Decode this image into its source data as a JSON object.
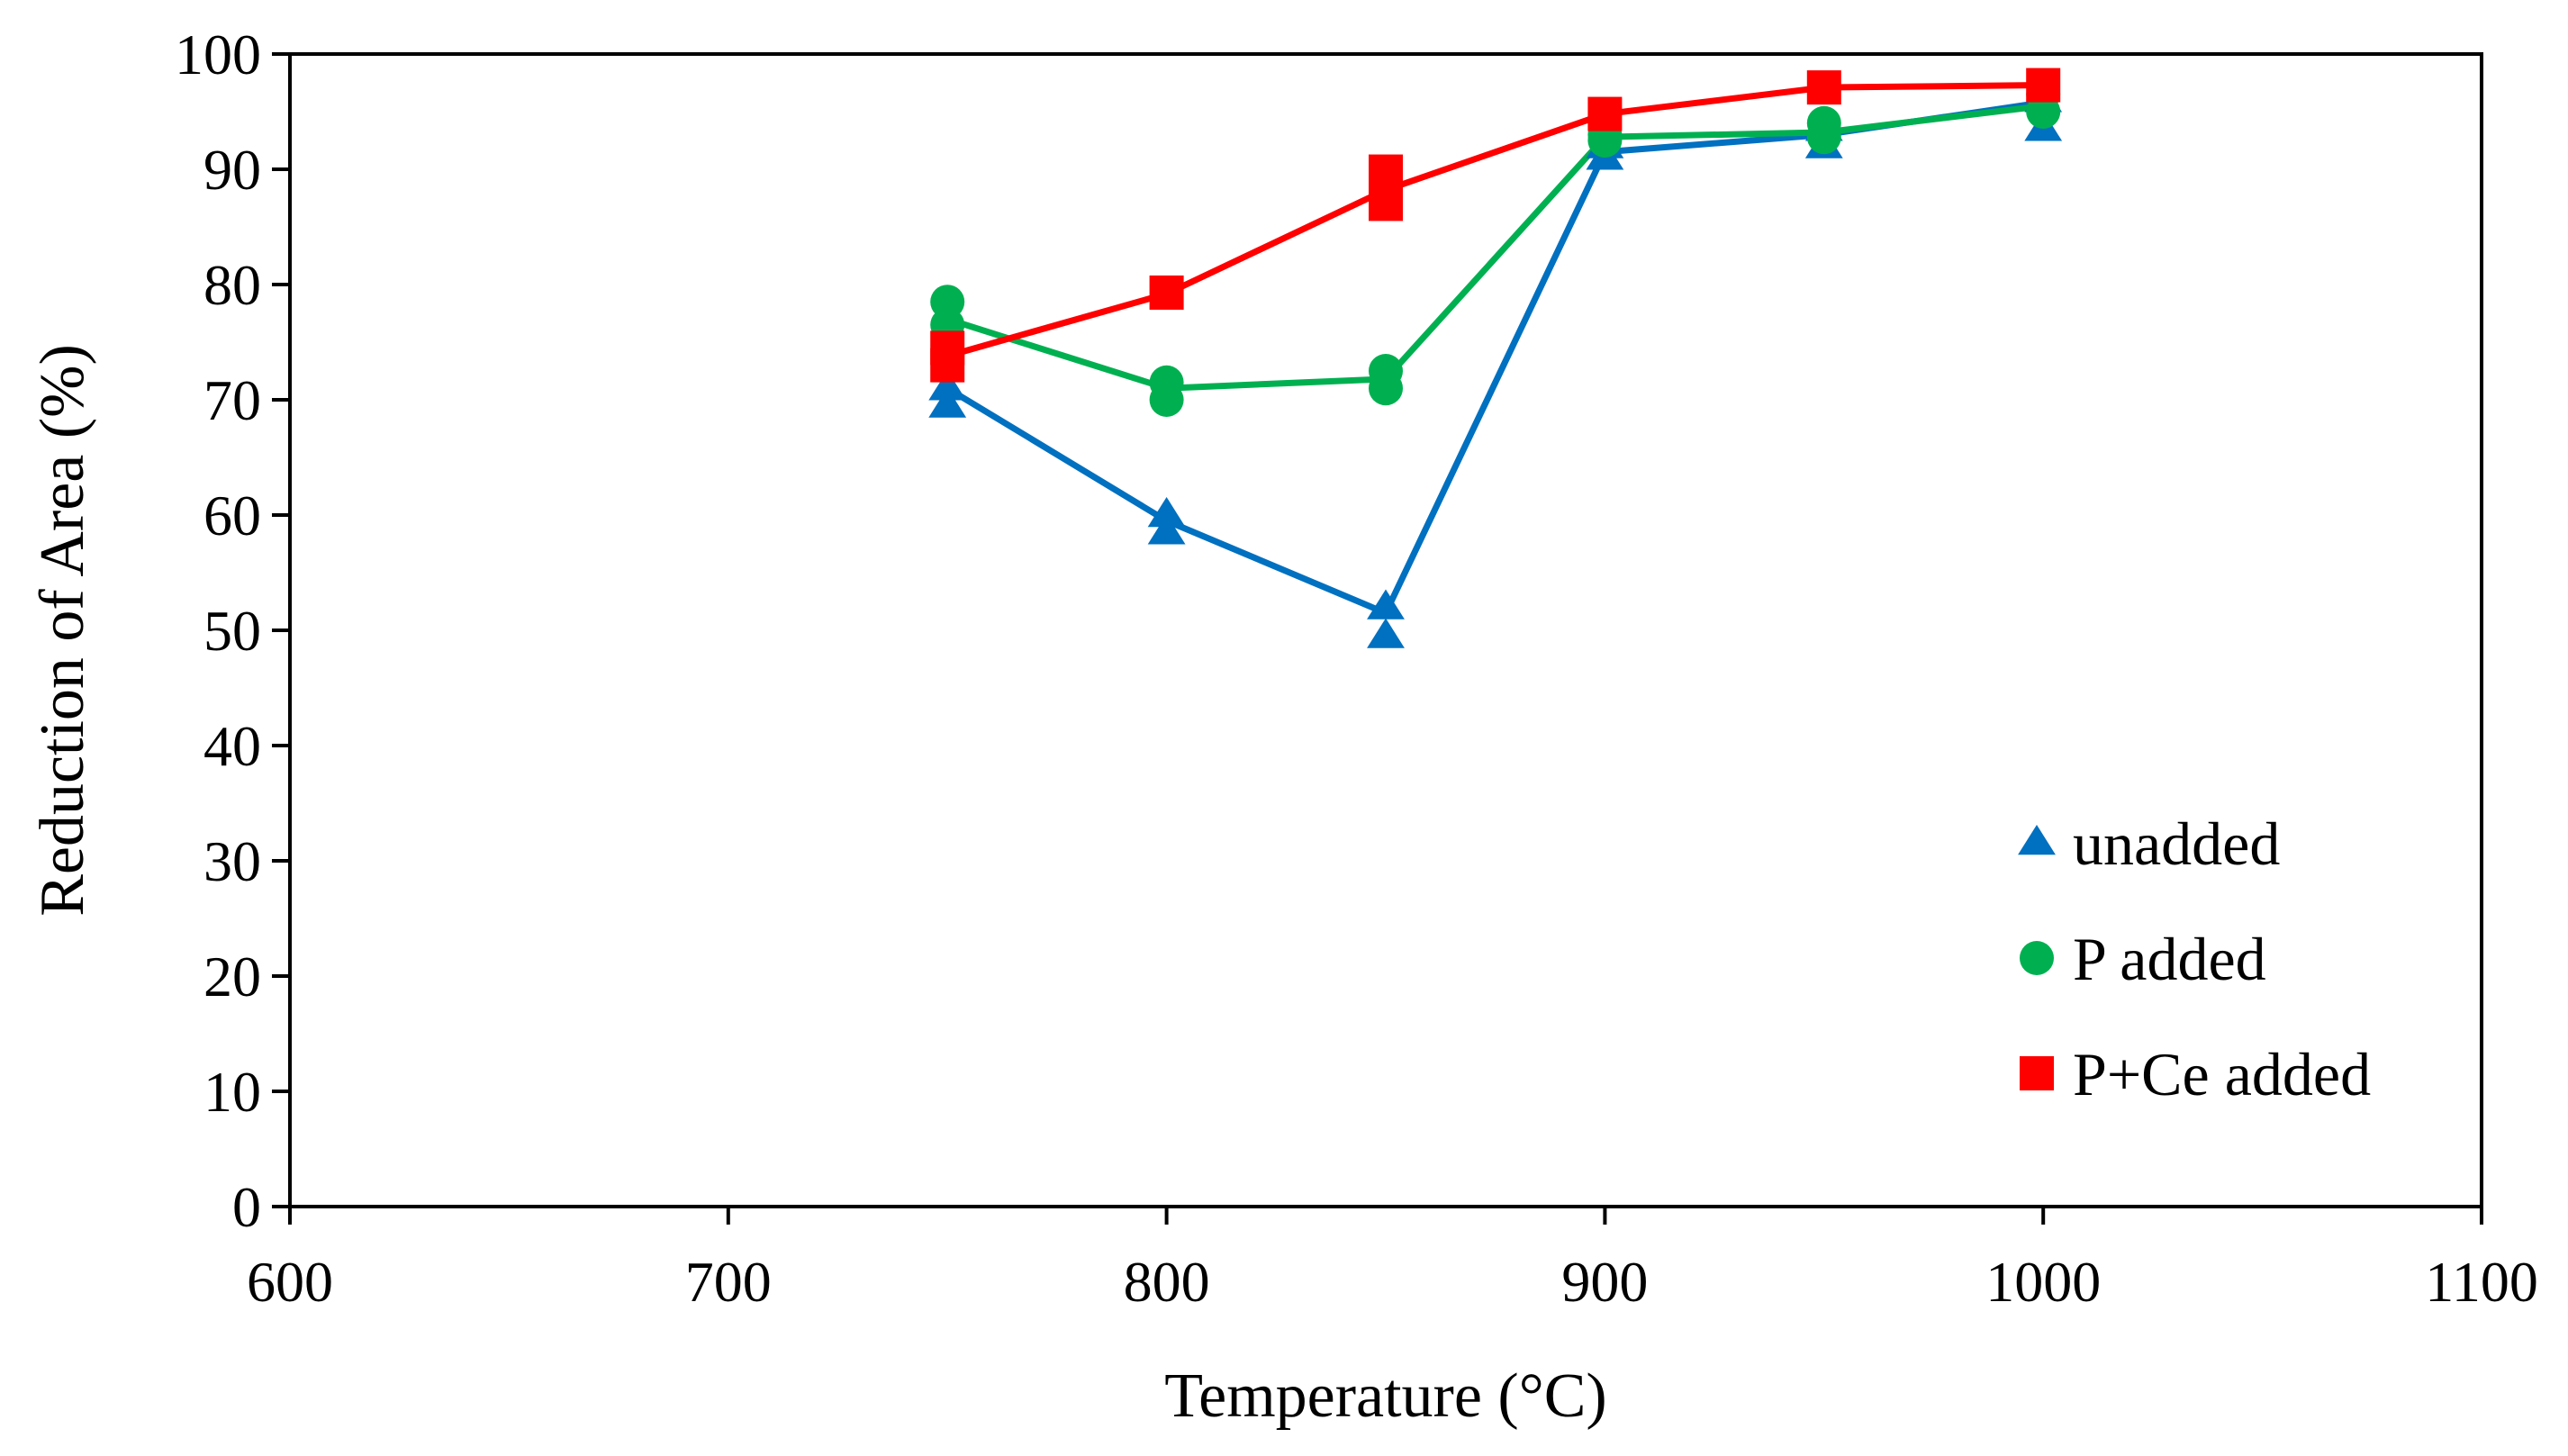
{
  "chart_data": {
    "type": "line",
    "title": "",
    "xlabel": "Temperature (°C)",
    "ylabel": "Reduction of Area (%)",
    "xlim": [
      600,
      1100
    ],
    "ylim": [
      0,
      100
    ],
    "xticks": [
      600,
      700,
      800,
      900,
      1000,
      1100
    ],
    "yticks": [
      0,
      10,
      20,
      30,
      40,
      50,
      60,
      70,
      80,
      90,
      100
    ],
    "grid": false,
    "legend_position": "bottom-right",
    "series": [
      {
        "name": "unadded",
        "color": "#0070C0",
        "marker": "triangle",
        "line": {
          "x": [
            750,
            800,
            850,
            900,
            950,
            1000
          ],
          "y": [
            71,
            59.5,
            51.5,
            91.5,
            93,
            95.8
          ]
        },
        "points": [
          {
            "x": 750,
            "y": 71
          },
          {
            "x": 750,
            "y": 69.5
          },
          {
            "x": 800,
            "y": 60
          },
          {
            "x": 800,
            "y": 58.5
          },
          {
            "x": 850,
            "y": 52
          },
          {
            "x": 850,
            "y": 49.5
          },
          {
            "x": 900,
            "y": 92
          },
          {
            "x": 900,
            "y": 91
          },
          {
            "x": 950,
            "y": 93.5
          },
          {
            "x": 950,
            "y": 92
          },
          {
            "x": 1000,
            "y": 96
          },
          {
            "x": 1000,
            "y": 93.5
          }
        ]
      },
      {
        "name": "P added",
        "color": "#00B050",
        "marker": "circle",
        "line": {
          "x": [
            750,
            800,
            850,
            900,
            950,
            1000
          ],
          "y": [
            77,
            71,
            71.8,
            92.8,
            93.2,
            95.5
          ]
        },
        "points": [
          {
            "x": 750,
            "y": 78.5
          },
          {
            "x": 750,
            "y": 76.5
          },
          {
            "x": 800,
            "y": 71.5
          },
          {
            "x": 800,
            "y": 70
          },
          {
            "x": 850,
            "y": 72.5
          },
          {
            "x": 850,
            "y": 71
          },
          {
            "x": 900,
            "y": 93
          },
          {
            "x": 900,
            "y": 92.5
          },
          {
            "x": 950,
            "y": 94
          },
          {
            "x": 950,
            "y": 92.8
          },
          {
            "x": 1000,
            "y": 96.5
          },
          {
            "x": 1000,
            "y": 95
          }
        ]
      },
      {
        "name": "P+Ce added",
        "color": "#FF0000",
        "marker": "square",
        "line": {
          "x": [
            750,
            800,
            850,
            900,
            950,
            1000
          ],
          "y": [
            73.8,
            79.2,
            88.2,
            94.8,
            97.1,
            97.3
          ]
        },
        "points": [
          {
            "x": 750,
            "y": 74.5
          },
          {
            "x": 750,
            "y": 73
          },
          {
            "x": 800,
            "y": 79.3
          },
          {
            "x": 850,
            "y": 89.8
          },
          {
            "x": 850,
            "y": 87
          },
          {
            "x": 900,
            "y": 94.8
          },
          {
            "x": 950,
            "y": 97.1
          },
          {
            "x": 1000,
            "y": 97.3
          }
        ]
      }
    ]
  }
}
